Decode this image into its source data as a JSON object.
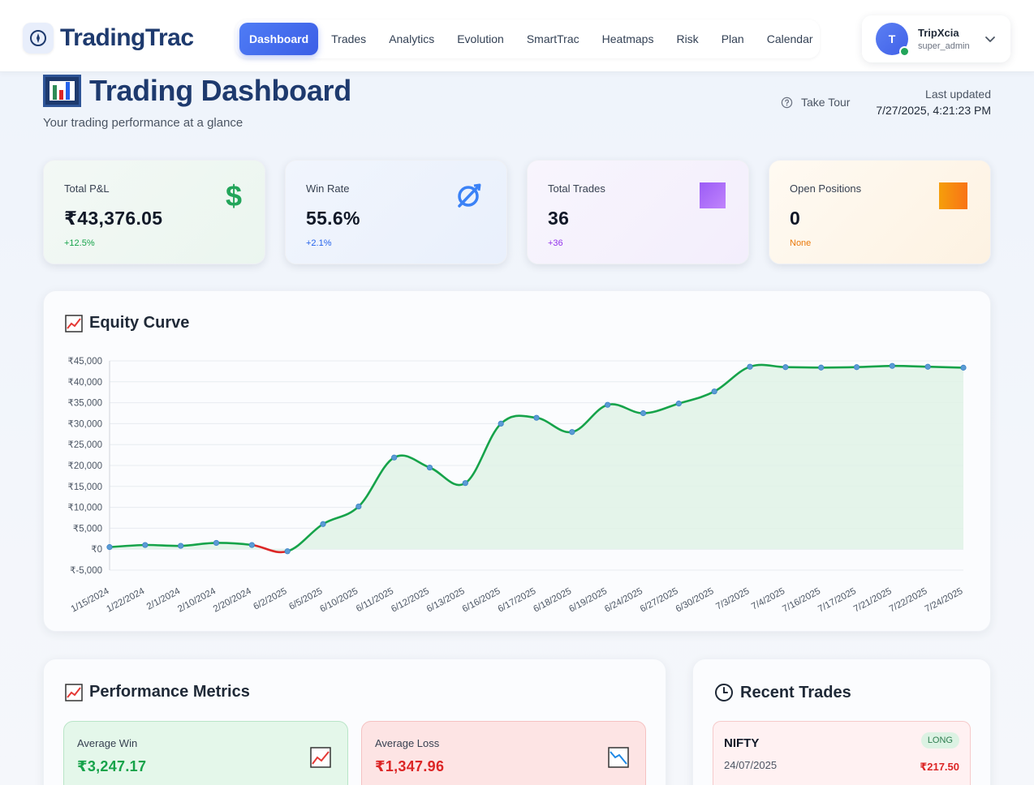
{
  "app": {
    "name": "TradingTrac"
  },
  "nav": {
    "items": [
      {
        "label": "Dashboard",
        "active": true
      },
      {
        "label": "Trades"
      },
      {
        "label": "Analytics"
      },
      {
        "label": "Evolution"
      },
      {
        "label": "SmartTrac"
      },
      {
        "label": "Heatmaps"
      },
      {
        "label": "Risk"
      },
      {
        "label": "Plan"
      },
      {
        "label": "Calendar"
      }
    ]
  },
  "user": {
    "initial": "T",
    "name": "TripXcia",
    "role": "super_admin",
    "online": true
  },
  "page": {
    "title": "Trading Dashboard",
    "subtitle": "Your trading performance at a glance",
    "take_tour": "Take Tour",
    "last_updated_label": "Last updated",
    "last_updated_value": "7/27/2025, 4:21:23 PM"
  },
  "stats": [
    {
      "label": "Total P&L",
      "value": "₹43,376.05",
      "change": "+12.5%",
      "change_color": "#16a34a",
      "icon": "dollar-icon"
    },
    {
      "label": "Win Rate",
      "value": "55.6%",
      "change": "+2.1%",
      "change_color": "#2563eb",
      "icon": "target-icon"
    },
    {
      "label": "Total Trades",
      "value": "36",
      "change": "+36",
      "change_color": "#9333ea",
      "icon": "purple-square-icon"
    },
    {
      "label": "Open Positions",
      "value": "0",
      "change": "None",
      "change_color": "#ea7a0c",
      "icon": "orange-square-icon"
    }
  ],
  "equity": {
    "title": "Equity Curve",
    "positive_color": "#16a34a",
    "negative_color": "#dc2626",
    "point_color": "#5b9bd5"
  },
  "chart_data": {
    "type": "area",
    "title": "Equity Curve",
    "xlabel": "",
    "ylabel": "",
    "ylim": [
      -5000,
      45000
    ],
    "yticks": [
      "₹-5,000",
      "₹0",
      "₹5,000",
      "₹10,000",
      "₹15,000",
      "₹20,000",
      "₹25,000",
      "₹30,000",
      "₹35,000",
      "₹40,000",
      "₹45,000"
    ],
    "ytick_values": [
      -5000,
      0,
      5000,
      10000,
      15000,
      20000,
      25000,
      30000,
      35000,
      40000,
      45000
    ],
    "grid": true,
    "categories": [
      "1/15/2024",
      "1/22/2024",
      "2/1/2024",
      "2/10/2024",
      "2/20/2024",
      "6/2/2025",
      "6/5/2025",
      "6/10/2025",
      "6/11/2025",
      "6/12/2025",
      "6/13/2025",
      "6/16/2025",
      "6/17/2025",
      "6/18/2025",
      "6/19/2025",
      "6/24/2025",
      "6/27/2025",
      "6/30/2025",
      "7/3/2025",
      "7/4/2025",
      "7/16/2025",
      "7/17/2025",
      "7/21/2025",
      "7/22/2025",
      "7/24/2025"
    ],
    "values": [
      500,
      1000,
      800,
      1500,
      1000,
      -500,
      6000,
      10200,
      21900,
      19500,
      15800,
      30000,
      31400,
      28000,
      34500,
      32500,
      34800,
      37700,
      43600,
      43500,
      43400,
      43500,
      43800,
      43600,
      43376
    ]
  },
  "metrics": {
    "title": "Performance Metrics",
    "avg_win_label": "Average Win",
    "avg_win_value": "₹3,247.17",
    "avg_loss_label": "Average Loss",
    "avg_loss_value": "₹1,347.96"
  },
  "recent": {
    "title": "Recent Trades",
    "trades": [
      {
        "symbol": "NIFTY",
        "date": "24/07/2025",
        "side": "LONG",
        "pnl": "₹217.50"
      }
    ]
  }
}
